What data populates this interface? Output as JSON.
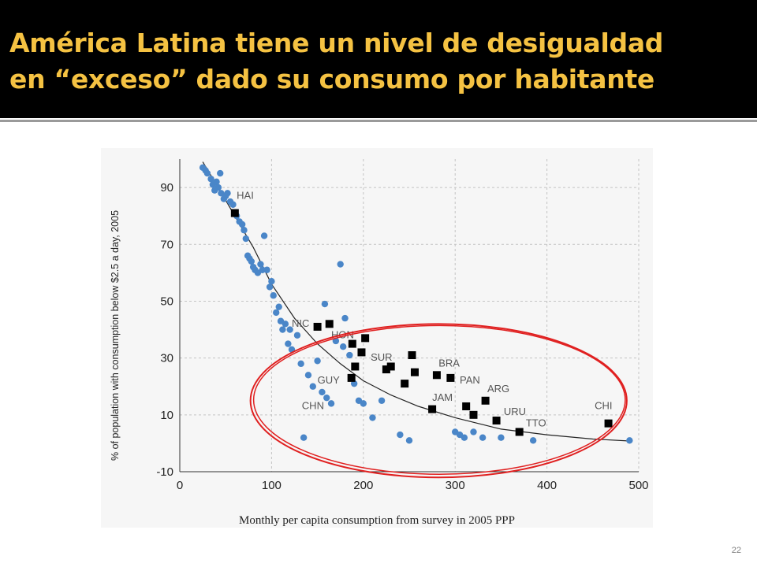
{
  "slide": {
    "title_line1": "América Latina tiene un nivel de desigualdad",
    "title_line2": "en “exceso” dado su consumo por habitante",
    "page_number": "22",
    "colors": {
      "title_background": "#000000",
      "title_text": "#f5c242",
      "highlight_ellipse": "#e02020"
    }
  },
  "chart_data": {
    "type": "scatter",
    "title": "",
    "xlabel": "Monthly per capita consumption from survey in 2005 PPP",
    "ylabel": "% of population with consumption below $2.5 a day, 2005",
    "xlim": [
      0,
      500
    ],
    "ylim": [
      -10,
      100
    ],
    "x_ticks": [
      0,
      100,
      200,
      300,
      400,
      500
    ],
    "y_ticks": [
      -10,
      10,
      30,
      50,
      70,
      90
    ],
    "grid": true,
    "series": [
      {
        "marker": "circle",
        "color": "#4a86c8",
        "points": [
          [
            25,
            97
          ],
          [
            28,
            96
          ],
          [
            30,
            95
          ],
          [
            34,
            93
          ],
          [
            36,
            91
          ],
          [
            38,
            89
          ],
          [
            40,
            92
          ],
          [
            42,
            90
          ],
          [
            44,
            95
          ],
          [
            45,
            88
          ],
          [
            48,
            86
          ],
          [
            50,
            87
          ],
          [
            52,
            88
          ],
          [
            55,
            85
          ],
          [
            58,
            84
          ],
          [
            62,
            80
          ],
          [
            65,
            78
          ],
          [
            68,
            77
          ],
          [
            70,
            75
          ],
          [
            72,
            72
          ],
          [
            74,
            66
          ],
          [
            76,
            65
          ],
          [
            78,
            64
          ],
          [
            80,
            62
          ],
          [
            82,
            61
          ],
          [
            85,
            60
          ],
          [
            88,
            63
          ],
          [
            90,
            61
          ],
          [
            92,
            73
          ],
          [
            95,
            61
          ],
          [
            98,
            55
          ],
          [
            100,
            57
          ],
          [
            102,
            52
          ],
          [
            105,
            46
          ],
          [
            108,
            48
          ],
          [
            110,
            43
          ],
          [
            112,
            40
          ],
          [
            115,
            42
          ],
          [
            118,
            35
          ],
          [
            120,
            40
          ],
          [
            122,
            33
          ],
          [
            128,
            38
          ],
          [
            132,
            28
          ],
          [
            135,
            2
          ],
          [
            140,
            24
          ],
          [
            145,
            20
          ],
          [
            150,
            29
          ],
          [
            155,
            18
          ],
          [
            158,
            49
          ],
          [
            160,
            16
          ],
          [
            165,
            14
          ],
          [
            170,
            36
          ],
          [
            175,
            63
          ],
          [
            178,
            34
          ],
          [
            180,
            44
          ],
          [
            185,
            31
          ],
          [
            190,
            21
          ],
          [
            195,
            15
          ],
          [
            200,
            14
          ],
          [
            210,
            9
          ],
          [
            220,
            15
          ],
          [
            240,
            3
          ],
          [
            250,
            1
          ],
          [
            300,
            4
          ],
          [
            305,
            3
          ],
          [
            310,
            2
          ],
          [
            320,
            4
          ],
          [
            330,
            2
          ],
          [
            350,
            2
          ],
          [
            385,
            1
          ],
          [
            490,
            1
          ]
        ]
      },
      {
        "marker": "square",
        "color": "#000000",
        "points": [
          [
            60,
            81
          ],
          [
            150,
            41
          ],
          [
            163,
            42
          ],
          [
            202,
            37
          ],
          [
            188,
            35
          ],
          [
            198,
            32
          ],
          [
            230,
            27
          ],
          [
            225,
            26
          ],
          [
            253,
            31
          ],
          [
            191,
            27
          ],
          [
            256,
            25
          ],
          [
            187,
            23
          ],
          [
            245,
            21
          ],
          [
            280,
            24
          ],
          [
            295,
            23
          ],
          [
            275,
            12
          ],
          [
            312,
            13
          ],
          [
            320,
            10
          ],
          [
            333,
            15
          ],
          [
            345,
            8
          ],
          [
            370,
            4
          ],
          [
            467,
            7
          ]
        ]
      }
    ],
    "trend_line": {
      "type": "curve",
      "points": [
        [
          25,
          99
        ],
        [
          40,
          91
        ],
        [
          60,
          80
        ],
        [
          80,
          69
        ],
        [
          100,
          56
        ],
        [
          125,
          44
        ],
        [
          150,
          35
        ],
        [
          175,
          28
        ],
        [
          200,
          22
        ],
        [
          230,
          17
        ],
        [
          260,
          13
        ],
        [
          300,
          9
        ],
        [
          350,
          5
        ],
        [
          400,
          3
        ],
        [
          450,
          1.5
        ],
        [
          490,
          0.8
        ]
      ]
    },
    "annotations": [
      {
        "text": "HAI",
        "x": 62,
        "y": 86
      },
      {
        "text": "NIC",
        "x": 122,
        "y": 41
      },
      {
        "text": "HON",
        "x": 165,
        "y": 37
      },
      {
        "text": "SUR",
        "x": 208,
        "y": 29
      },
      {
        "text": "BRA",
        "x": 282,
        "y": 27
      },
      {
        "text": "PAN",
        "x": 305,
        "y": 21
      },
      {
        "text": "GUY",
        "x": 150,
        "y": 21
      },
      {
        "text": "ARG",
        "x": 335,
        "y": 18
      },
      {
        "text": "JAM",
        "x": 275,
        "y": 15
      },
      {
        "text": "URU",
        "x": 353,
        "y": 10
      },
      {
        "text": "TTO",
        "x": 377,
        "y": 6
      },
      {
        "text": "CHI",
        "x": 452,
        "y": 12
      },
      {
        "text": "CHN",
        "x": 133,
        "y": 12
      }
    ],
    "highlight": {
      "shape": "ellipse",
      "cx": 282,
      "cy": 15,
      "rx": 205,
      "ry": 27
    }
  }
}
